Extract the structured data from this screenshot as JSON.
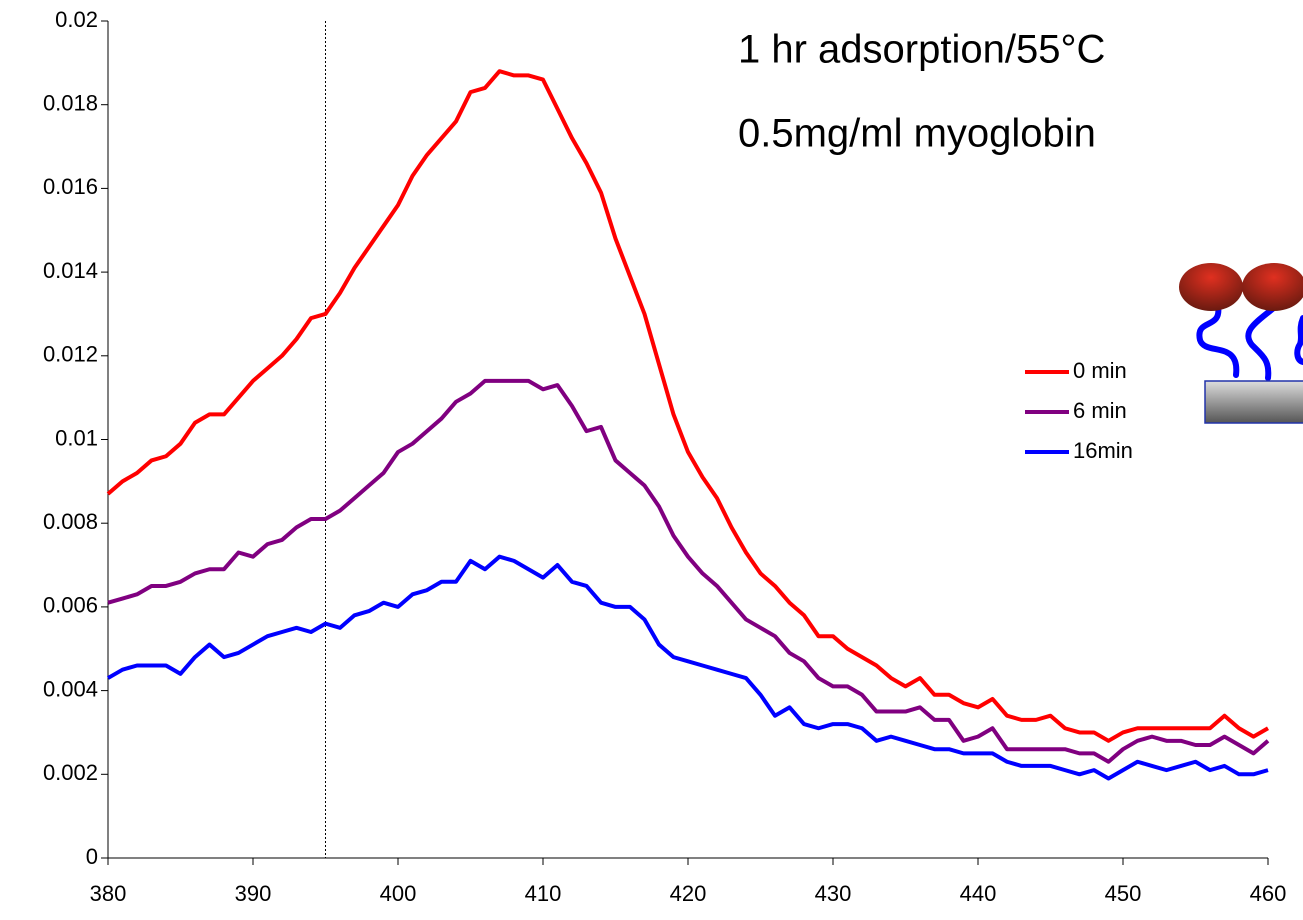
{
  "chart_data": {
    "type": "line",
    "annotations": [
      "1 hr adsorption/55°C",
      "0.5mg/ml myoglobin"
    ],
    "x": [
      380,
      381,
      382,
      383,
      384,
      385,
      386,
      387,
      388,
      389,
      390,
      391,
      392,
      393,
      394,
      395,
      396,
      397,
      398,
      399,
      400,
      401,
      402,
      403,
      404,
      405,
      406,
      407,
      408,
      409,
      410,
      411,
      412,
      413,
      414,
      415,
      416,
      417,
      418,
      419,
      420,
      421,
      422,
      423,
      424,
      425,
      426,
      427,
      428,
      429,
      430,
      431,
      432,
      433,
      434,
      435,
      436,
      437,
      438,
      439,
      440,
      441,
      442,
      443,
      444,
      445,
      446,
      447,
      448,
      449,
      450,
      451,
      452,
      453,
      454,
      455,
      456,
      457,
      458,
      459,
      460
    ],
    "series": [
      {
        "name": "0 min",
        "color": "#ff0000",
        "values": [
          0.0087,
          0.009,
          0.0092,
          0.0095,
          0.0096,
          0.0099,
          0.0104,
          0.0106,
          0.0106,
          0.011,
          0.0114,
          0.0117,
          0.012,
          0.0124,
          0.0129,
          0.013,
          0.0135,
          0.0141,
          0.0146,
          0.0151,
          0.0156,
          0.0163,
          0.0168,
          0.0172,
          0.0176,
          0.0183,
          0.0184,
          0.0188,
          0.0187,
          0.0187,
          0.0186,
          0.0179,
          0.0172,
          0.0166,
          0.0159,
          0.0148,
          0.0139,
          0.013,
          0.0118,
          0.0106,
          0.0097,
          0.0091,
          0.0086,
          0.0079,
          0.0073,
          0.0068,
          0.0065,
          0.0061,
          0.0058,
          0.0053,
          0.0053,
          0.005,
          0.0048,
          0.0046,
          0.0043,
          0.0041,
          0.0043,
          0.0039,
          0.0039,
          0.0037,
          0.0036,
          0.0038,
          0.0034,
          0.0033,
          0.0033,
          0.0034,
          0.0031,
          0.003,
          0.003,
          0.0028,
          0.003,
          0.0031,
          0.0031,
          0.0031,
          0.0031,
          0.0031,
          0.0031,
          0.0034,
          0.0031,
          0.0029,
          0.0031
        ]
      },
      {
        "name": "6 min",
        "color": "#800080",
        "values": [
          0.0061,
          0.0062,
          0.0063,
          0.0065,
          0.0065,
          0.0066,
          0.0068,
          0.0069,
          0.0069,
          0.0073,
          0.0072,
          0.0075,
          0.0076,
          0.0079,
          0.0081,
          0.0081,
          0.0083,
          0.0086,
          0.0089,
          0.0092,
          0.0097,
          0.0099,
          0.0102,
          0.0105,
          0.0109,
          0.0111,
          0.0114,
          0.0114,
          0.0114,
          0.0114,
          0.0112,
          0.0113,
          0.0108,
          0.0102,
          0.0103,
          0.0095,
          0.0092,
          0.0089,
          0.0084,
          0.0077,
          0.0072,
          0.0068,
          0.0065,
          0.0061,
          0.0057,
          0.0055,
          0.0053,
          0.0049,
          0.0047,
          0.0043,
          0.0041,
          0.0041,
          0.0039,
          0.0035,
          0.0035,
          0.0035,
          0.0036,
          0.0033,
          0.0033,
          0.0028,
          0.0029,
          0.0031,
          0.0026,
          0.0026,
          0.0026,
          0.0026,
          0.0026,
          0.0025,
          0.0025,
          0.0023,
          0.0026,
          0.0028,
          0.0029,
          0.0028,
          0.0028,
          0.0027,
          0.0027,
          0.0029,
          0.0027,
          0.0025,
          0.0028
        ]
      },
      {
        "name": "16min",
        "color": "#0000ff",
        "values": [
          0.0043,
          0.0045,
          0.0046,
          0.0046,
          0.0046,
          0.0044,
          0.0048,
          0.0051,
          0.0048,
          0.0049,
          0.0051,
          0.0053,
          0.0054,
          0.0055,
          0.0054,
          0.0056,
          0.0055,
          0.0058,
          0.0059,
          0.0061,
          0.006,
          0.0063,
          0.0064,
          0.0066,
          0.0066,
          0.0071,
          0.0069,
          0.0072,
          0.0071,
          0.0069,
          0.0067,
          0.007,
          0.0066,
          0.0065,
          0.0061,
          0.006,
          0.006,
          0.0057,
          0.0051,
          0.0048,
          0.0047,
          0.0046,
          0.0045,
          0.0044,
          0.0043,
          0.0039,
          0.0034,
          0.0036,
          0.0032,
          0.0031,
          0.0032,
          0.0032,
          0.0031,
          0.0028,
          0.0029,
          0.0028,
          0.0027,
          0.0026,
          0.0026,
          0.0025,
          0.0025,
          0.0025,
          0.0023,
          0.0022,
          0.0022,
          0.0022,
          0.0021,
          0.002,
          0.0021,
          0.0019,
          0.0021,
          0.0023,
          0.0022,
          0.0021,
          0.0022,
          0.0023,
          0.0021,
          0.0022,
          0.002,
          0.002,
          0.0021
        ]
      }
    ],
    "xlim": [
      380,
      460
    ],
    "xticks": [
      380,
      390,
      400,
      410,
      420,
      430,
      440,
      450,
      460
    ],
    "ylim": [
      0,
      0.02
    ],
    "yticks": [
      0,
      0.002,
      0.004,
      0.006,
      0.008,
      0.01,
      0.012,
      0.014,
      0.016,
      0.018,
      0.02
    ],
    "vlines": [
      395
    ],
    "grid": false,
    "legend": "right"
  }
}
